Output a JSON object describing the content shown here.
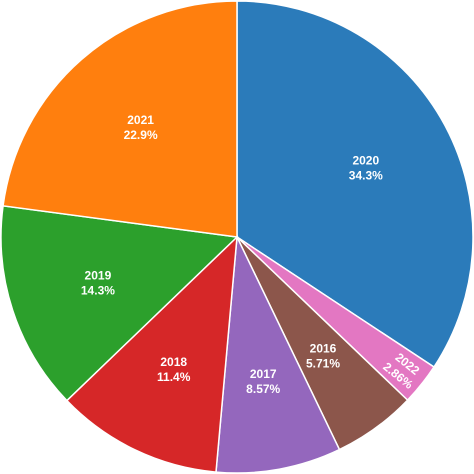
{
  "chart_data": {
    "type": "pie",
    "start_angle_deg": 0,
    "direction": "clockwise",
    "slices": [
      {
        "label": "2020",
        "value": 34.3,
        "value_label": "34.3%",
        "color": "#2b7bba"
      },
      {
        "label": "2022",
        "value": 2.86,
        "value_label": "2.86%",
        "color": "#e377c2"
      },
      {
        "label": "2016",
        "value": 5.71,
        "value_label": "5.71%",
        "color": "#8c564b"
      },
      {
        "label": "2017",
        "value": 8.57,
        "value_label": "8.57%",
        "color": "#9467bd"
      },
      {
        "label": "2018",
        "value": 11.4,
        "value_label": "11.4%",
        "color": "#d62728"
      },
      {
        "label": "2019",
        "value": 14.3,
        "value_label": "14.3%",
        "color": "#2ca02c"
      },
      {
        "label": "2021",
        "value": 22.9,
        "value_label": "22.9%",
        "color": "#ff7f0e"
      }
    ]
  }
}
